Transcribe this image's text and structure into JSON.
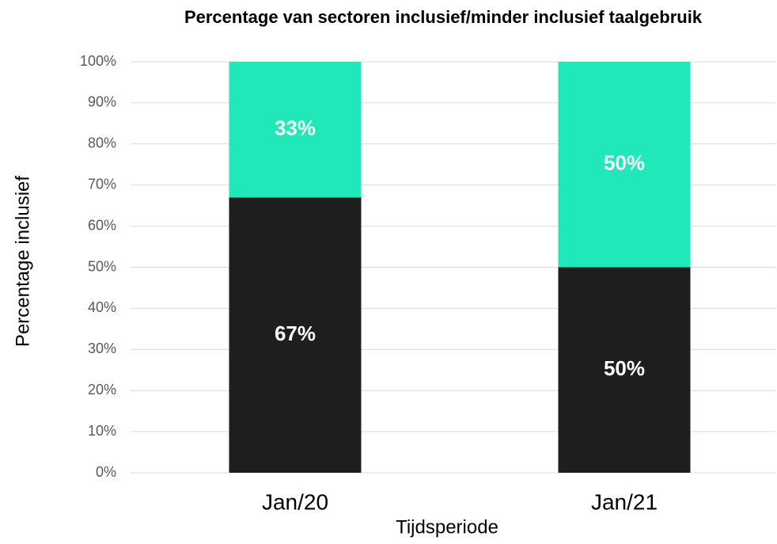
{
  "chart_data": {
    "type": "stacked_bar",
    "title": "Percentage van sectoren inclusief/minder inclusief taalgebruik",
    "x_label": "Tijdsperiode",
    "y_label": "Percentage inclusief",
    "categories": [
      "Jan/20",
      "Jan/21"
    ],
    "series": [
      {
        "color": "#1e1e1e",
        "values": [
          67,
          50
        ],
        "value_labels": [
          "67%",
          "50%"
        ]
      },
      {
        "color": "#20e8b8",
        "values": [
          33,
          50
        ],
        "value_labels": [
          "33%",
          "50%"
        ]
      }
    ],
    "ylim": [
      0,
      100
    ],
    "yticks": [
      {
        "value": 0,
        "label": "0%"
      },
      {
        "value": 10,
        "label": "10%"
      },
      {
        "value": 20,
        "label": "20%"
      },
      {
        "value": 30,
        "label": "30%"
      },
      {
        "value": 40,
        "label": "40%"
      },
      {
        "value": 50,
        "label": "50%"
      },
      {
        "value": 60,
        "label": "60%"
      },
      {
        "value": 70,
        "label": "70%"
      },
      {
        "value": 80,
        "label": "80%"
      },
      {
        "value": 90,
        "label": "90%"
      },
      {
        "value": 100,
        "label": "100%"
      }
    ],
    "grid": true
  }
}
